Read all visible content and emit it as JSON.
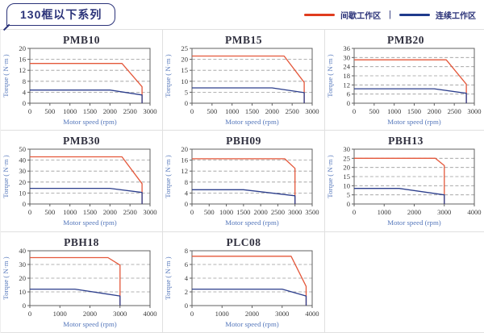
{
  "header": {
    "title": "130框以下系列"
  },
  "legend": {
    "intermittent_label": "间歇工作区",
    "separator": "|",
    "continuous_label": "连续工作区"
  },
  "colors": {
    "intermittent": "#e4573a",
    "continuous": "#2c3e8c",
    "legend_intermittent": "#e03c1e",
    "legend_continuous": "#1f3b8c",
    "navy": "#2b3379",
    "grid_line": "#9a9a9a",
    "plot_border": "#606060"
  },
  "chart_data": [
    {
      "type": "line",
      "title": "PMB10",
      "xlabel": "Motor speed (rpm)",
      "ylabel": "Torque ( N·m )",
      "xlim": [
        0,
        3000
      ],
      "xticks": [
        0,
        500,
        1000,
        1500,
        2000,
        2500,
        3000
      ],
      "ylim": [
        0,
        20
      ],
      "yticks": [
        0,
        4,
        8,
        12,
        16,
        20
      ],
      "grid": "horizontal-dashed",
      "legend_position": "none",
      "series": [
        {
          "name": "间歇工作区",
          "color_key": "intermittent",
          "points": [
            [
              0,
              14.5
            ],
            [
              2300,
              14.5
            ],
            [
              2800,
              6
            ],
            [
              2800,
              0
            ]
          ]
        },
        {
          "name": "连续工作区",
          "color_key": "continuous",
          "points": [
            [
              0,
              4.8
            ],
            [
              2000,
              4.8
            ],
            [
              2800,
              3
            ],
            [
              2800,
              0
            ]
          ]
        }
      ]
    },
    {
      "type": "line",
      "title": "PMB15",
      "xlabel": "Motor speed (rpm)",
      "ylabel": "Torque ( N·m )",
      "xlim": [
        0,
        3000
      ],
      "xticks": [
        0,
        500,
        1000,
        1500,
        2000,
        2500,
        3000
      ],
      "ylim": [
        0,
        25
      ],
      "yticks": [
        0,
        5,
        10,
        15,
        20,
        25
      ],
      "grid": "horizontal-dashed",
      "legend_position": "none",
      "series": [
        {
          "name": "间歇工作区",
          "color_key": "intermittent",
          "points": [
            [
              0,
              21.5
            ],
            [
              2300,
              21.5
            ],
            [
              2800,
              9.5
            ],
            [
              2800,
              0
            ]
          ]
        },
        {
          "name": "连续工作区",
          "color_key": "continuous",
          "points": [
            [
              0,
              7
            ],
            [
              2000,
              7
            ],
            [
              2800,
              4.8
            ],
            [
              2800,
              0
            ]
          ]
        }
      ]
    },
    {
      "type": "line",
      "title": "PMB20",
      "xlabel": "Motor speed (rpm)",
      "ylabel": "Torque ( N·m )",
      "xlim": [
        0,
        3000
      ],
      "xticks": [
        0,
        500,
        1000,
        1500,
        2000,
        2500,
        3000
      ],
      "ylim": [
        0,
        36
      ],
      "yticks": [
        0,
        6,
        12,
        18,
        24,
        30,
        36
      ],
      "grid": "horizontal-dashed",
      "legend_position": "none",
      "series": [
        {
          "name": "间歇工作区",
          "color_key": "intermittent",
          "points": [
            [
              0,
              28.5
            ],
            [
              2300,
              28.5
            ],
            [
              2800,
              12.5
            ],
            [
              2800,
              0
            ]
          ]
        },
        {
          "name": "连续工作区",
          "color_key": "continuous",
          "points": [
            [
              0,
              9.5
            ],
            [
              2000,
              9.5
            ],
            [
              2800,
              6.5
            ],
            [
              2800,
              0
            ]
          ]
        }
      ]
    },
    {
      "type": "line",
      "title": "PMB30",
      "xlabel": "Motor speed (rpm)",
      "ylabel": "Torque ( N·m )",
      "xlim": [
        0,
        3000
      ],
      "xticks": [
        0,
        500,
        1000,
        1500,
        2000,
        2500,
        3000
      ],
      "ylim": [
        0,
        50
      ],
      "yticks": [
        0,
        10,
        20,
        30,
        40,
        50
      ],
      "grid": "horizontal-dashed",
      "legend_position": "none",
      "series": [
        {
          "name": "间歇工作区",
          "color_key": "intermittent",
          "points": [
            [
              0,
              43
            ],
            [
              2300,
              43
            ],
            [
              2800,
              18.5
            ],
            [
              2800,
              0
            ]
          ]
        },
        {
          "name": "连续工作区",
          "color_key": "continuous",
          "points": [
            [
              0,
              14.3
            ],
            [
              2000,
              14.3
            ],
            [
              2800,
              10.5
            ],
            [
              2800,
              0
            ]
          ]
        }
      ]
    },
    {
      "type": "line",
      "title": "PBH09",
      "xlabel": "Motor speed (rpm)",
      "ylabel": "Torque ( N·m )",
      "xlim": [
        0,
        3500
      ],
      "xticks": [
        0,
        500,
        1000,
        1500,
        2000,
        2500,
        3000,
        3500
      ],
      "ylim": [
        0,
        20
      ],
      "yticks": [
        0,
        4,
        8,
        12,
        16,
        20
      ],
      "grid": "horizontal-dashed",
      "legend_position": "none",
      "series": [
        {
          "name": "间歇工作区",
          "color_key": "intermittent",
          "points": [
            [
              0,
              16.5
            ],
            [
              2700,
              16.5
            ],
            [
              3000,
              13
            ],
            [
              3000,
              0
            ]
          ]
        },
        {
          "name": "连续工作区",
          "color_key": "continuous",
          "points": [
            [
              0,
              5.2
            ],
            [
              1500,
              5.2
            ],
            [
              3000,
              3
            ],
            [
              3000,
              0
            ]
          ]
        }
      ]
    },
    {
      "type": "line",
      "title": "PBH13",
      "xlabel": "Motor speed (rpm)",
      "ylabel": "Torque ( N·m )",
      "xlim": [
        0,
        4000
      ],
      "xticks": [
        0,
        1000,
        2000,
        3000,
        4000
      ],
      "ylim": [
        0,
        30
      ],
      "yticks": [
        0,
        5,
        10,
        15,
        20,
        25,
        30
      ],
      "grid": "horizontal-dashed",
      "legend_position": "none",
      "series": [
        {
          "name": "间歇工作区",
          "color_key": "intermittent",
          "points": [
            [
              0,
              25
            ],
            [
              2700,
              25
            ],
            [
              3000,
              21
            ],
            [
              3000,
              0
            ]
          ]
        },
        {
          "name": "连续工作区",
          "color_key": "continuous",
          "points": [
            [
              0,
              8.5
            ],
            [
              1500,
              8.5
            ],
            [
              3000,
              5
            ],
            [
              3000,
              0
            ]
          ]
        }
      ]
    },
    {
      "type": "line",
      "title": "PBH18",
      "xlabel": "Motor speed (rpm)",
      "ylabel": "Torque ( N·m )",
      "xlim": [
        0,
        4000
      ],
      "xticks": [
        0,
        1000,
        2000,
        3000,
        4000
      ],
      "ylim": [
        0,
        40
      ],
      "yticks": [
        0,
        10,
        20,
        30,
        40
      ],
      "grid": "horizontal-dashed",
      "legend_position": "none",
      "series": [
        {
          "name": "间歇工作区",
          "color_key": "intermittent",
          "points": [
            [
              0,
              35
            ],
            [
              2600,
              35
            ],
            [
              3000,
              29.5
            ],
            [
              3000,
              0
            ]
          ]
        },
        {
          "name": "连续工作区",
          "color_key": "continuous",
          "points": [
            [
              0,
              12
            ],
            [
              1500,
              12
            ],
            [
              3000,
              7
            ],
            [
              3000,
              0
            ]
          ]
        }
      ]
    },
    {
      "type": "line",
      "title": "PLC08",
      "xlabel": "Motor speed (rpm)",
      "ylabel": "Torque ( N·m )",
      "xlim": [
        0,
        4000
      ],
      "xticks": [
        0,
        1000,
        2000,
        3000,
        4000
      ],
      "ylim": [
        0,
        8
      ],
      "yticks": [
        0,
        2,
        4,
        6,
        8
      ],
      "grid": "horizontal-dashed",
      "legend_position": "none",
      "series": [
        {
          "name": "间歇工作区",
          "color_key": "intermittent",
          "points": [
            [
              0,
              7.2
            ],
            [
              3300,
              7.2
            ],
            [
              3800,
              2.8
            ],
            [
              3800,
              0
            ]
          ]
        },
        {
          "name": "连续工作区",
          "color_key": "continuous",
          "points": [
            [
              0,
              2.4
            ],
            [
              3000,
              2.4
            ],
            [
              3800,
              1.4
            ],
            [
              3800,
              0
            ]
          ]
        }
      ]
    }
  ]
}
